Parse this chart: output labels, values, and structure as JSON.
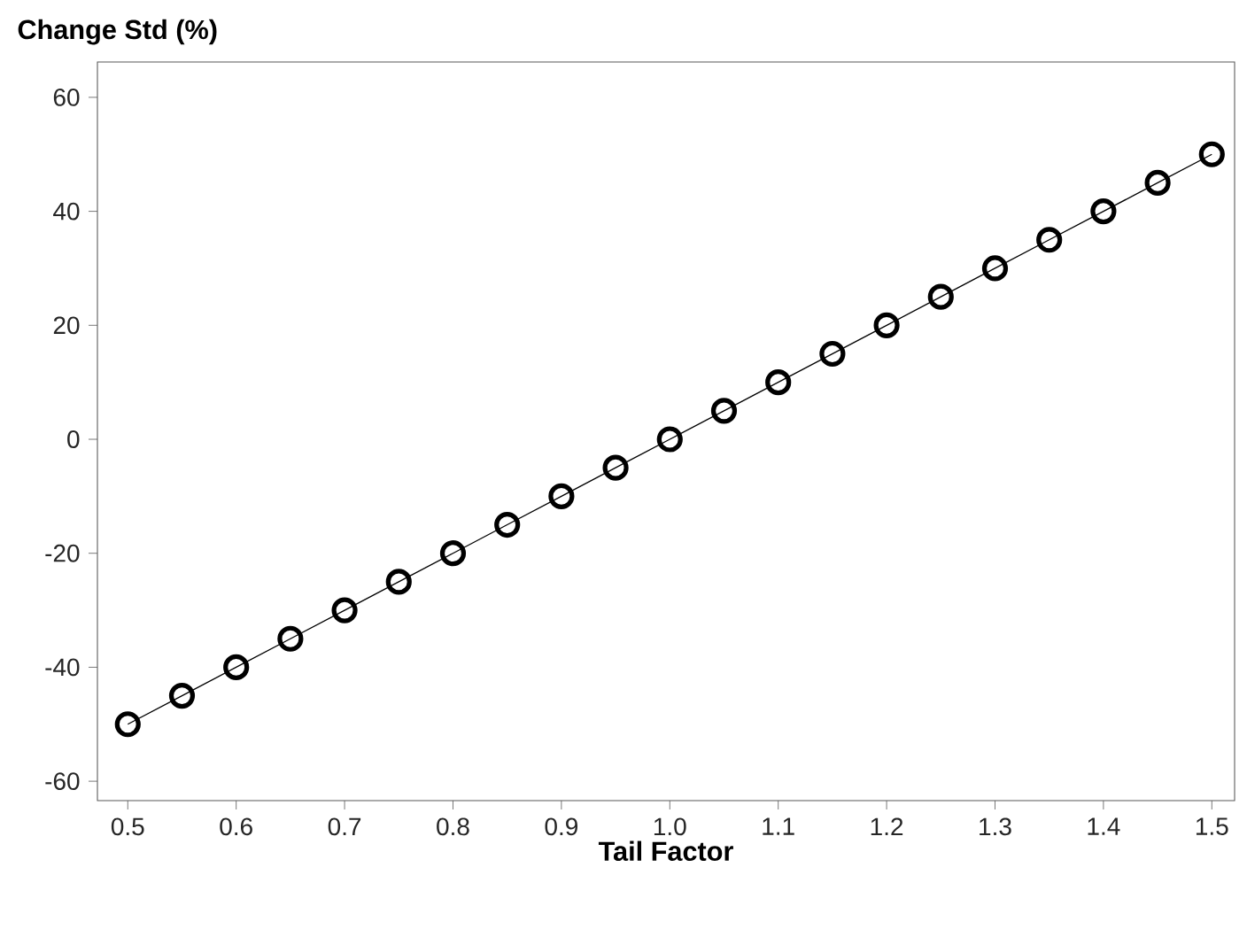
{
  "chart_data": {
    "type": "line",
    "ylabel": "Change Std (%)",
    "xlabel": "Tail Factor",
    "x": [
      0.5,
      0.55,
      0.6,
      0.65,
      0.7,
      0.75,
      0.8,
      0.85,
      0.9,
      0.95,
      1.0,
      1.05,
      1.1,
      1.15,
      1.2,
      1.25,
      1.3,
      1.35,
      1.4,
      1.45,
      1.5
    ],
    "values": [
      -50,
      -45,
      -40,
      -35,
      -30,
      -25,
      -20,
      -15,
      -10,
      -5,
      0,
      5,
      10,
      15,
      20,
      25,
      30,
      35,
      40,
      45,
      50
    ],
    "color": "#000000",
    "marker": "circle",
    "line_style": "solid",
    "xlim": [
      0.472,
      1.521
    ],
    "ylim": [
      -63.4,
      66.2
    ],
    "xticks": [
      {
        "value": 0.5,
        "label": "0.5"
      },
      {
        "value": 0.6,
        "label": "0.6"
      },
      {
        "value": 0.7,
        "label": "0.7"
      },
      {
        "value": 0.8,
        "label": "0.8"
      },
      {
        "value": 0.9,
        "label": "0.9"
      },
      {
        "value": 1.0,
        "label": "1.0"
      },
      {
        "value": 1.1,
        "label": "1.1"
      },
      {
        "value": 1.2,
        "label": "1.2"
      },
      {
        "value": 1.3,
        "label": "1.3"
      },
      {
        "value": 1.4,
        "label": "1.4"
      },
      {
        "value": 1.5,
        "label": "1.5"
      }
    ],
    "yticks": [
      -60,
      -40,
      -20,
      0,
      20,
      40,
      60
    ]
  }
}
